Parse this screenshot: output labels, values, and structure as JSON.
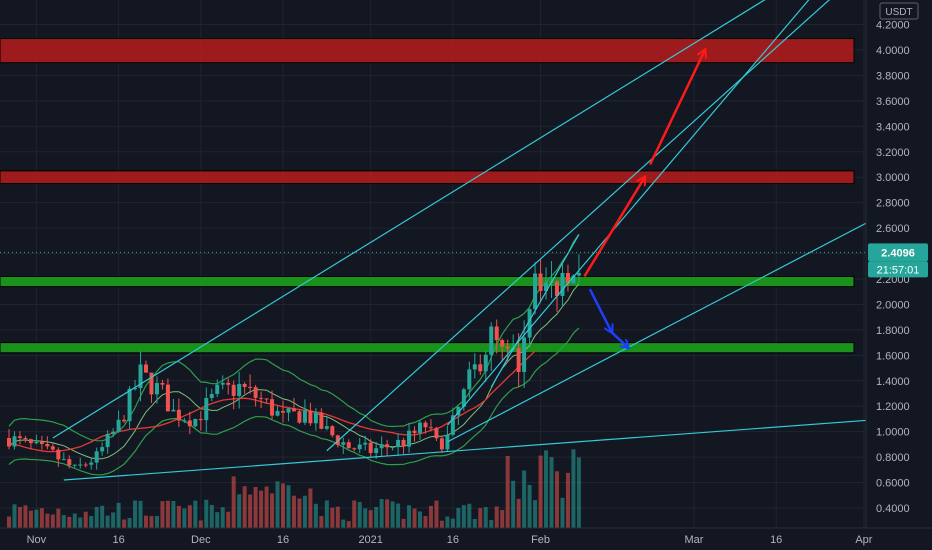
{
  "chart_data": {
    "type": "candlestick",
    "symbol_unit": "USDT",
    "last_price_label": "2.4096",
    "countdown_label": "21:57:01",
    "y_ticks": [
      "4.2000",
      "4.0000",
      "3.8000",
      "3.6000",
      "3.4000",
      "3.2000",
      "3.0000",
      "2.8000",
      "2.6000",
      "2.4000",
      "2.2000",
      "2.0000",
      "1.8000",
      "1.6000",
      "1.4000",
      "1.2000",
      "1.0000",
      "0.8000",
      "0.6000",
      "0.4000"
    ],
    "x_ticks": [
      "Nov",
      "16",
      "Dec",
      "16",
      "2021",
      "16",
      "Feb",
      "Mar",
      "16",
      "Apr"
    ],
    "ylim": [
      0.35,
      4.35
    ],
    "colors": {
      "background": "#131722",
      "bull": "#26a69a",
      "bear": "#ef5350",
      "resistance_zone": "#b71c1c",
      "support_zone": "#1b9e1b",
      "trendline": "#33c9d6",
      "arrow_up": "#ff1a1a",
      "arrow_down": "#1e3fff",
      "ma": "#e53935",
      "band": "#2e9e4a"
    },
    "resistance_zones": [
      [
        3.9,
        4.09
      ],
      [
        2.95,
        3.05
      ]
    ],
    "support_zones": [
      [
        2.14,
        2.22
      ],
      [
        1.62,
        1.7
      ]
    ]
  }
}
